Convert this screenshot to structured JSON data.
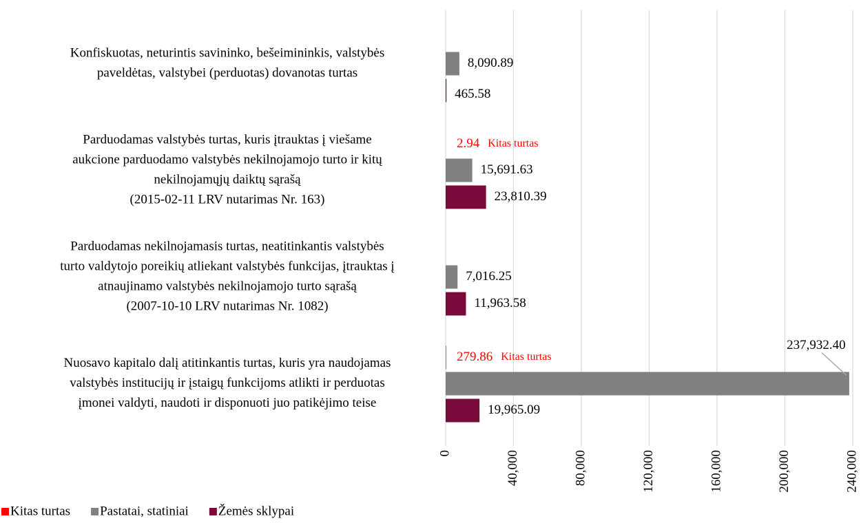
{
  "chart_data": {
    "type": "hbar",
    "categories": [
      [
        "Konfiskuotas, neturintis savininko, bešeimininkis, valstybės",
        "paveldėtas, valstybei (perduotas) dovanotas turtas"
      ],
      [
        "Parduodamas valstybės turtas, kuris įtrauktas į viešame",
        "aukcione parduodamo valstybės nekilnojamojo turto ir kitų",
        "nekilnojamųjų daiktų sąrašą",
        "(2015-02-11 LRV nutarimas Nr. 163)"
      ],
      [
        "Parduodamas nekilnojamasis turtas, neatitinkantis valstybės",
        "turto valdytojo poreikių atliekant valstybės funkcijas, įtrauktas į",
        "atnaujinamo valstybės nekilnojamojo turto sąrašą",
        "(2007-10-10 LRV nutarimas Nr. 1082)"
      ],
      [
        "Nuosavo kapitalo dalį atitinkantis turtas, kuris yra naudojamas",
        "valstybės institucijų ir įstaigų funkcijoms atlikti ir perduotas",
        "įmonei valdyti, naudoti ir disponuoti juo patikėjimo teise"
      ]
    ],
    "series": [
      {
        "name": "Kitas turtas",
        "color": "#ff0000",
        "values": [
          null,
          2.94,
          null,
          279.86
        ],
        "value_labels": [
          null,
          "2.94",
          null,
          "279.86"
        ]
      },
      {
        "name": "Pastatai, statiniai",
        "color": "#808080",
        "values": [
          8090.89,
          15691.63,
          7016.25,
          237932.4
        ],
        "value_labels": [
          "8,090.89",
          "15,691.63",
          "7,016.25",
          "237,932.40"
        ]
      },
      {
        "name": "Žemės sklypai",
        "color": "#7a0a3c",
        "values": [
          465.58,
          23810.39,
          11963.58,
          19965.09
        ],
        "value_labels": [
          "465.58",
          "23,810.39",
          "11,963.58",
          "19,965.09"
        ]
      }
    ],
    "xlim": [
      0,
      240000
    ],
    "xticks": [
      0,
      {
        "value": 40000,
        "label": "40,000"
      },
      {
        "value": 80000,
        "label": "80,000"
      },
      {
        "value": 120000,
        "label": "120,000"
      },
      {
        "value": 160000,
        "label": "160,000"
      },
      {
        "value": 200000,
        "label": "200,000"
      },
      {
        "value": 240000,
        "label": "240,000"
      }
    ],
    "grid": true,
    "legend": "bottom-left"
  }
}
